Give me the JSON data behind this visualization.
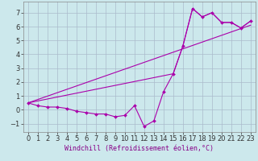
{
  "xlabel": "Windchill (Refroidissement éolien,°C)",
  "bg_color": "#cce8ec",
  "grid_color": "#aabbcc",
  "line_color": "#aa00aa",
  "xlim": [
    -0.5,
    23.5
  ],
  "ylim": [
    -1.6,
    7.8
  ],
  "xticks": [
    0,
    1,
    2,
    3,
    4,
    5,
    6,
    7,
    8,
    9,
    10,
    11,
    12,
    13,
    14,
    15,
    16,
    17,
    18,
    19,
    20,
    21,
    22,
    23
  ],
  "yticks": [
    -1,
    0,
    1,
    2,
    3,
    4,
    5,
    6,
    7
  ],
  "line1_x": [
    0,
    1,
    2,
    3,
    4,
    5,
    6,
    7,
    8,
    9,
    10,
    11,
    12,
    13,
    14,
    15,
    16,
    17,
    18,
    19,
    20,
    21,
    22,
    23
  ],
  "line1_y": [
    0.5,
    0.3,
    0.2,
    0.2,
    0.1,
    -0.1,
    -0.2,
    -0.3,
    -0.3,
    -0.5,
    -0.4,
    0.3,
    -1.2,
    -0.8,
    1.3,
    2.6,
    4.6,
    7.3,
    6.7,
    7.0,
    6.3,
    6.3,
    5.9,
    6.4
  ],
  "line2_x": [
    0,
    23
  ],
  "line2_y": [
    0.5,
    6.1
  ],
  "line3_x": [
    0,
    15,
    16,
    17,
    18,
    19,
    20,
    21,
    22,
    23
  ],
  "line3_y": [
    0.5,
    2.6,
    4.6,
    7.3,
    6.7,
    7.0,
    6.3,
    6.3,
    5.9,
    6.4
  ],
  "xlabel_color": "#880088",
  "xlabel_fontsize": 6,
  "tick_fontsize": 6
}
